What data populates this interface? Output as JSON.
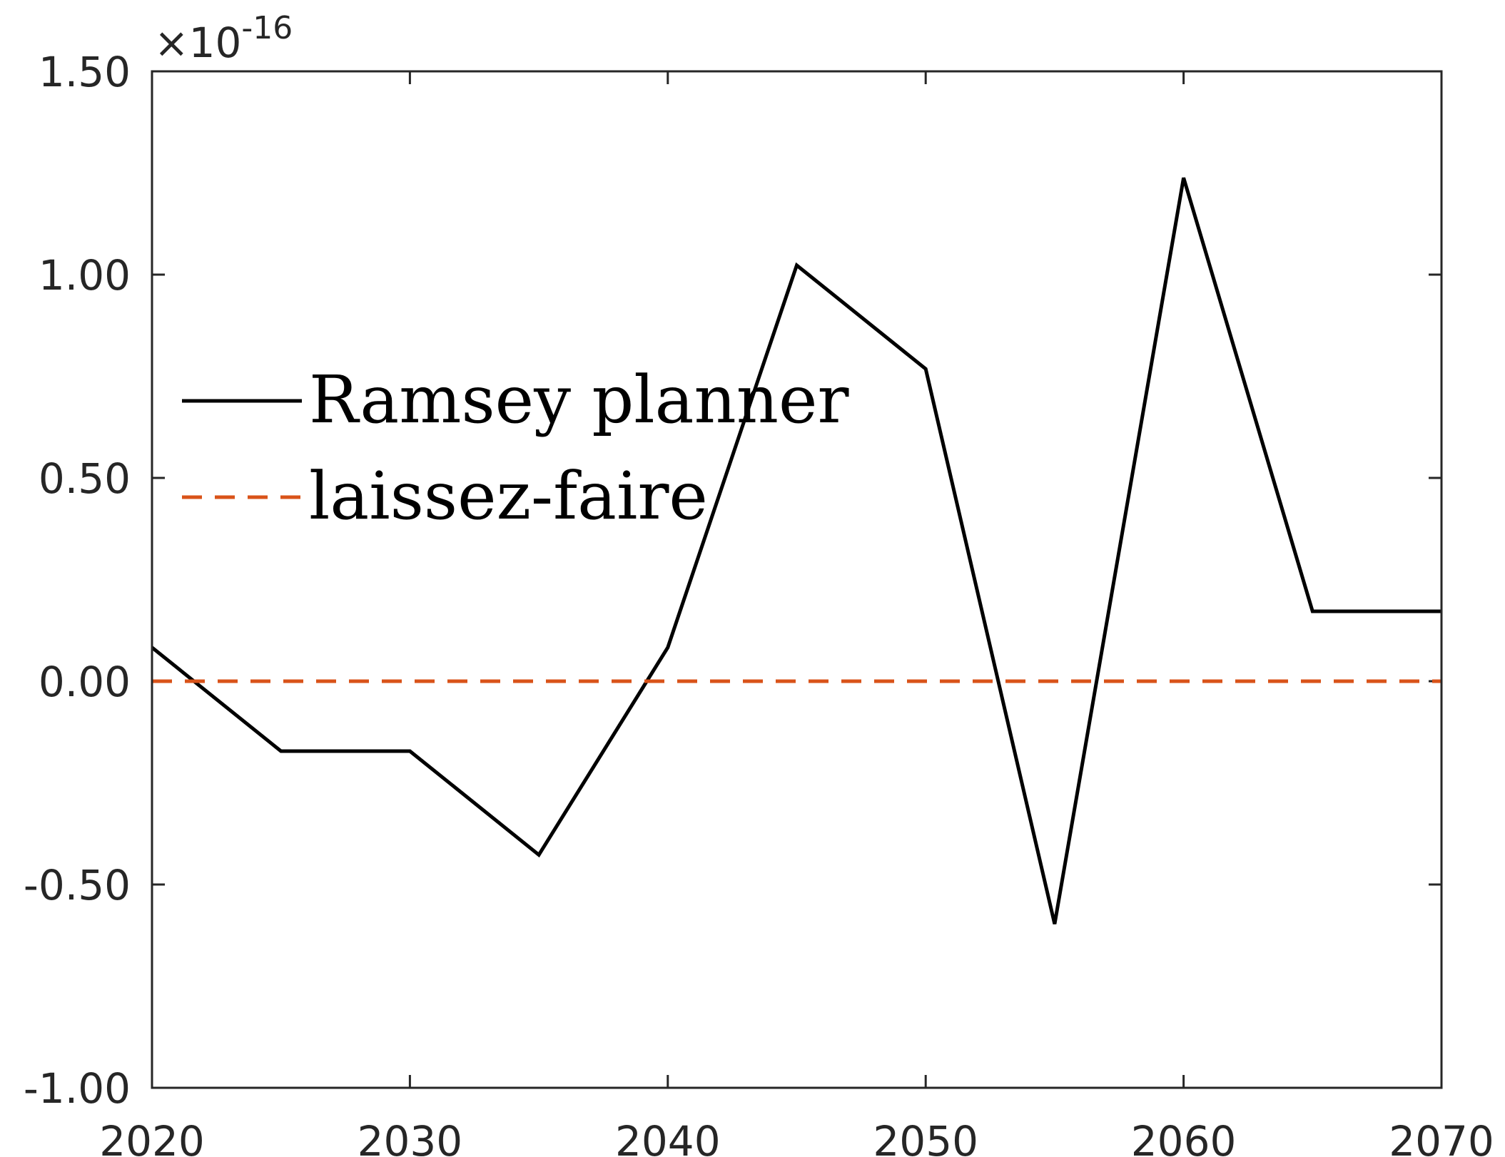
{
  "chart_data": {
    "type": "line",
    "title": "",
    "xlabel": "",
    "ylabel": "",
    "xlim": [
      2020,
      2070
    ],
    "ylim": [
      -1.0,
      1.5
    ],
    "y_exponent_label": {
      "base": "×10",
      "power": "-16"
    },
    "x_ticks": [
      {
        "value": 2020,
        "label": "2020"
      },
      {
        "value": 2030,
        "label": "2030"
      },
      {
        "value": 2040,
        "label": "2040"
      },
      {
        "value": 2050,
        "label": "2050"
      },
      {
        "value": 2060,
        "label": "2060"
      },
      {
        "value": 2070,
        "label": "2070"
      }
    ],
    "y_ticks": [
      {
        "value": 1.5,
        "label": "1.50"
      },
      {
        "value": 1.0,
        "label": "1.00"
      },
      {
        "value": 0.5,
        "label": "0.50"
      },
      {
        "value": 0.0,
        "label": "0.00"
      },
      {
        "value": -0.5,
        "label": "-0.50"
      },
      {
        "value": -1.0,
        "label": "-1.00"
      }
    ],
    "grid": false,
    "legend_position": "upper-left",
    "series": [
      {
        "name": "Ramsey planner",
        "color": "#000000",
        "style": "solid",
        "x": [
          2020,
          2025,
          2030,
          2035,
          2040,
          2045,
          2050,
          2055,
          2060,
          2065,
          2070
        ],
        "y": [
          0.083,
          -0.172,
          -0.172,
          -0.427,
          0.083,
          1.023,
          0.768,
          -0.597,
          1.238,
          0.172,
          0.172
        ]
      },
      {
        "name": "laissez-faire",
        "color": "#D95319",
        "style": "dashed",
        "x": [
          2020,
          2070
        ],
        "y": [
          0.0,
          0.0
        ]
      }
    ]
  }
}
